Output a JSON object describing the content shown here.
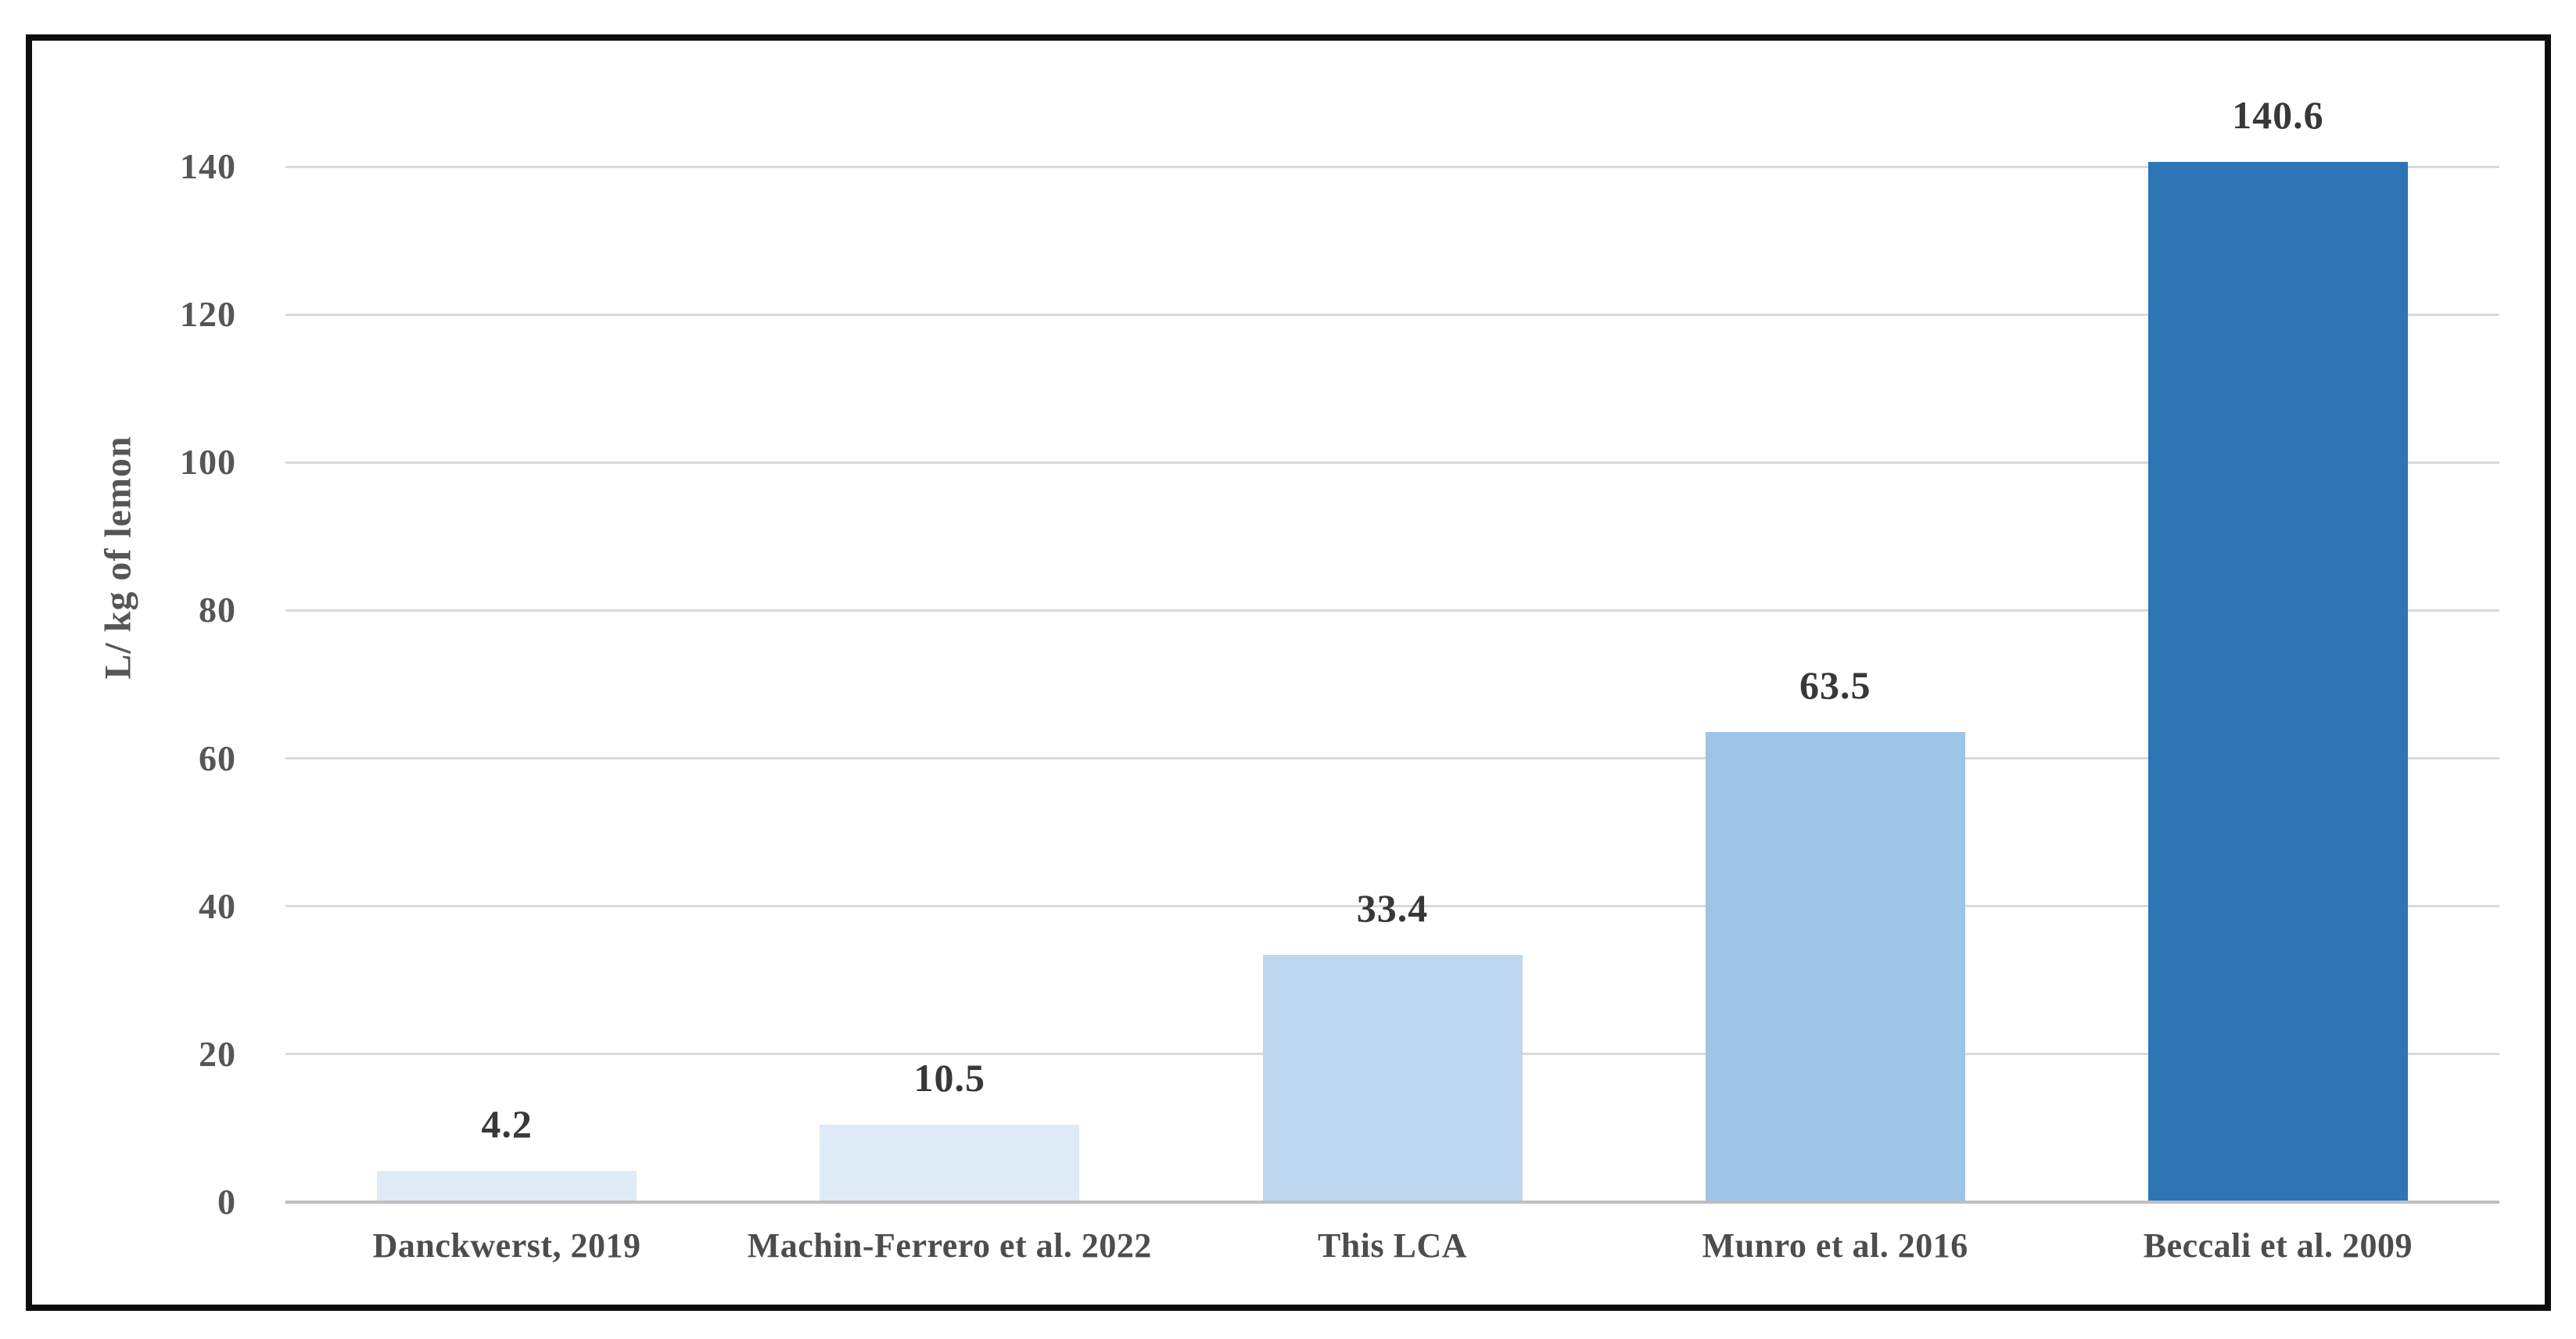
{
  "figure": {
    "background_color": "#ffffff",
    "border_color": "#0d0d0d"
  },
  "chart_data": {
    "type": "bar",
    "title": "",
    "xlabel": "",
    "ylabel": "L/ kg of lemon",
    "categories": [
      "Danckwerst, 2019",
      "Machin-Ferrero et al. 2022",
      "This LCA",
      "Munro et al. 2016",
      "Beccali et al. 2009"
    ],
    "values": [
      4.2,
      10.5,
      33.4,
      63.5,
      140.6
    ],
    "value_labels": [
      "4.2",
      "10.5",
      "33.4",
      "63.5",
      "140.6"
    ],
    "bar_colors": [
      "#deebf7",
      "#deebf7",
      "#bdd7ee",
      "#9dc3e6",
      "#2e75b6"
    ],
    "ylim": [
      0,
      150
    ],
    "yticks": [
      0,
      20,
      40,
      60,
      80,
      100,
      120,
      140
    ],
    "grid": "horizontal",
    "gridline_color": "#d9d9d9",
    "axis_line_color": "#bfbfbf",
    "tick_label_color": "#565656",
    "category_label_color": "#4d4d4d",
    "value_label_color": "#383838",
    "ylabel_color": "#565656",
    "legend": "none"
  }
}
